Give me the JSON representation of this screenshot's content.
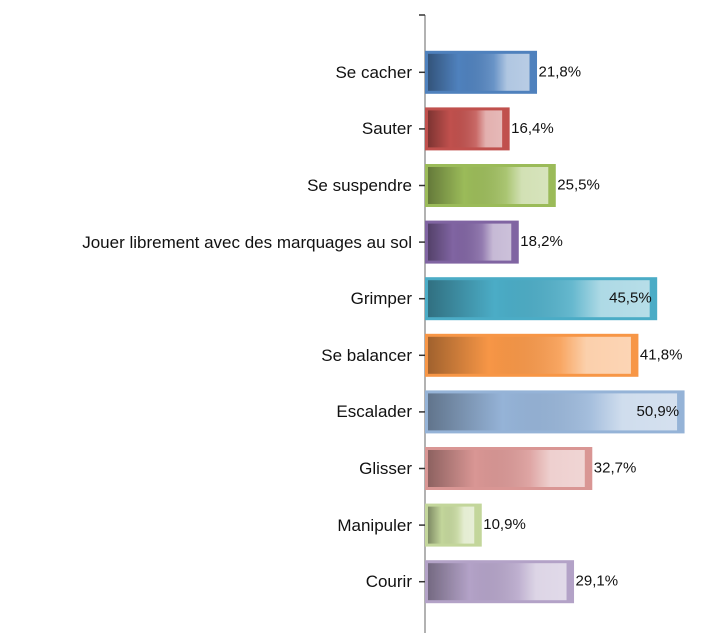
{
  "chart_data": {
    "type": "bar",
    "orientation": "horizontal",
    "categories": [
      "Se cacher",
      "Sauter",
      "Se suspendre",
      "Jouer librement avec des marquages au sol",
      "Grimper",
      "Se balancer",
      "Escalader",
      "Glisser",
      "Manipuler",
      "Courir"
    ],
    "values": [
      21.8,
      16.4,
      25.5,
      18.2,
      45.5,
      41.8,
      50.9,
      32.7,
      10.9,
      29.1
    ],
    "value_labels": [
      "21,8%",
      "16,4%",
      "25,5%",
      "18,2%",
      "45,5%",
      "41,8%",
      "50,9%",
      "32,7%",
      "10,9%",
      "29,1%"
    ],
    "colors": [
      "#4f81bd",
      "#c0504d",
      "#9bbb59",
      "#8064a2",
      "#4bacc6",
      "#f79646",
      "#95b3d7",
      "#d99694",
      "#c3d69b",
      "#b3a2c7"
    ]
  }
}
